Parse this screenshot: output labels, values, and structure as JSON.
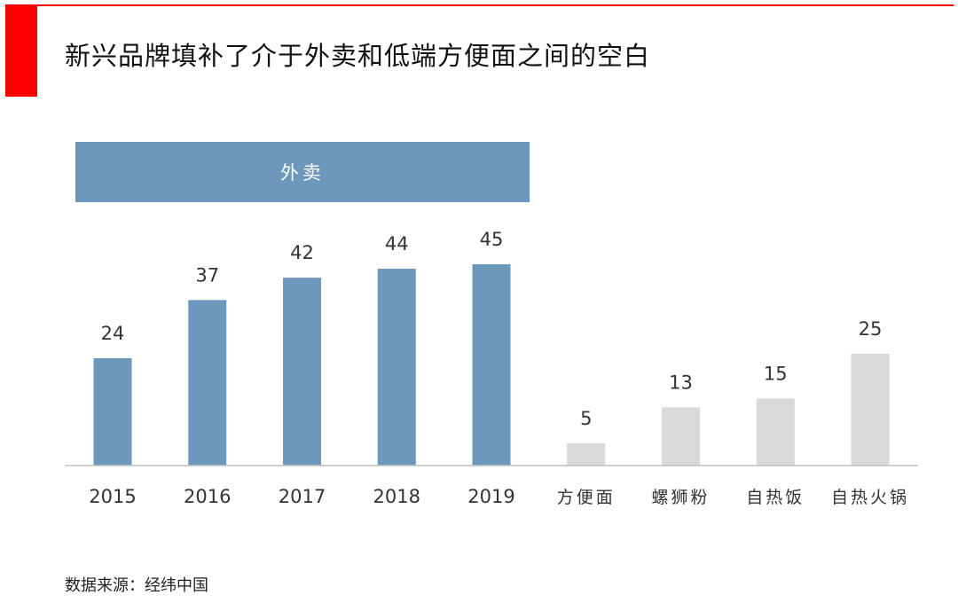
{
  "title": "新兴品牌填补了介于外卖和低端方便面之间的空白",
  "banner_label": "外卖",
  "source": "数据来源：经纬中国",
  "colors": {
    "accent": "#ff0000",
    "blue": "#6d98bd",
    "gray": "#d9d9d9",
    "axis": "#bfbfbf",
    "text": "#333333"
  },
  "chart_data": {
    "type": "bar",
    "title": "新兴品牌填补了介于外卖和低端方便面之间的空白",
    "xlabel": "",
    "ylabel": "",
    "ylim": [
      0,
      45
    ],
    "grid": false,
    "categories": [
      "2015",
      "2016",
      "2017",
      "2018",
      "2019",
      "方便面",
      "螺狮粉",
      "自热饭",
      "自热火锅"
    ],
    "values": [
      24,
      37,
      42,
      44,
      45,
      5,
      13,
      15,
      25
    ],
    "series_group": [
      "外卖",
      "外卖",
      "外卖",
      "外卖",
      "外卖",
      "other",
      "other",
      "other",
      "other"
    ]
  }
}
